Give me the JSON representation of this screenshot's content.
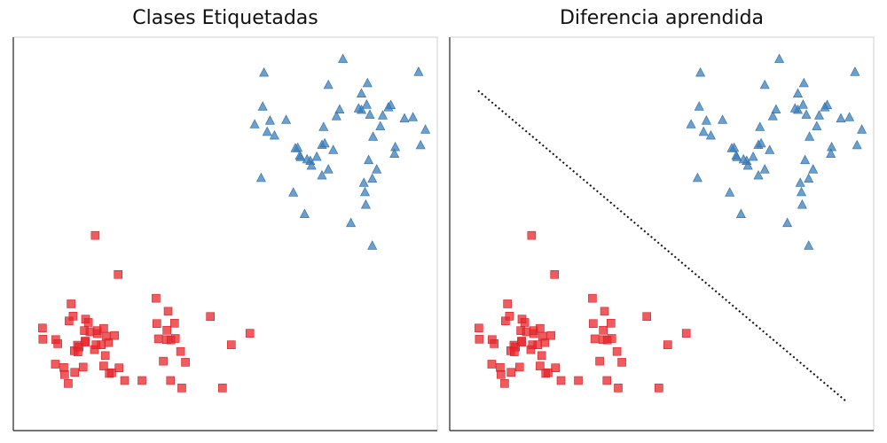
{
  "chart_data": [
    {
      "type": "scatter",
      "title": "Clases Etiquetadas",
      "xlim": [
        0,
        1000
      ],
      "ylim": [
        0,
        1000
      ],
      "grid": false,
      "axis_ticks": false,
      "colors": {
        "class_a": "#e8262b",
        "class_b": "#3a7fbd"
      },
      "series": [
        {
          "marker": "square",
          "points": [
            [
              177,
              496
            ],
            [
              46,
              247
            ],
            [
              234,
              391
            ],
            [
              225,
              227
            ],
            [
              212,
              125
            ],
            [
              78,
              150
            ],
            [
              99,
              141
            ],
            [
              101,
              122
            ],
            [
              112,
              266
            ],
            [
              117,
              312
            ],
            [
              126,
              128
            ],
            [
              122,
              279
            ],
            [
              110,
              98
            ],
            [
              125,
              186
            ],
            [
              133,
              201
            ],
            [
              137,
              196
            ],
            [
              152,
              212
            ],
            [
              147,
              142
            ],
            [
              134,
              183
            ],
            [
              150,
              240
            ],
            [
              153,
              271
            ],
            [
              160,
              262
            ],
            [
              152,
              209
            ],
            [
              164,
              237
            ],
            [
              175,
              189
            ],
            [
              182,
              232
            ],
            [
              198,
              145
            ],
            [
              202,
              173
            ],
            [
              210,
              208
            ],
            [
              204,
              225
            ],
            [
              192,
              202
            ],
            [
              179,
              202
            ],
            [
              182,
              240
            ],
            [
              198,
              246
            ],
            [
              218,
              127
            ],
            [
              236,
              140
            ],
            [
              250,
              106
            ],
            [
              293,
              106
            ],
            [
              334,
              218
            ],
            [
              330,
              259
            ],
            [
              328,
              327
            ],
            [
              354,
              216
            ],
            [
              355,
              241
            ],
            [
              346,
              158
            ],
            [
              358,
              292
            ],
            [
              365,
              215
            ],
            [
              374,
              260
            ],
            [
              376,
              219
            ],
            [
              389,
              184
            ],
            [
              364,
              106
            ],
            [
              392,
              86
            ],
            [
              401,
              155
            ],
            [
              463,
              278
            ],
            [
              515,
              202
            ],
            [
              561,
              233
            ],
            [
              493,
              86
            ],
            [
              79,
              216
            ],
            [
              47,
              217
            ],
            [
              84,
              205
            ]
          ]
        },
        {
          "marker": "triangle",
          "points": [
            [
              596,
              933
            ],
            [
              792,
              970
            ],
            [
              980,
              935
            ],
            [
              756,
              900
            ],
            [
              853,
              905
            ],
            [
              838,
              877
            ],
            [
              776,
              816
            ],
            [
              740,
              739
            ],
            [
              747,
              743
            ],
            [
              744,
              787
            ],
            [
              838,
              833
            ],
            [
              831,
              837
            ],
            [
              784,
              834
            ],
            [
              885,
              789
            ],
            [
              911,
              846
            ],
            [
              905,
              840
            ],
            [
              859,
              820
            ],
            [
              851,
              847
            ],
            [
              891,
              818
            ],
            [
              945,
              810
            ],
            [
              966,
              813
            ],
            [
              997,
              780
            ],
            [
              922,
              733
            ],
            [
              920,
              715
            ],
            [
              985,
              738
            ],
            [
              604,
              774
            ],
            [
              611,
              804
            ],
            [
              622,
              764
            ],
            [
              651,
              806
            ],
            [
              680,
              731
            ],
            [
              674,
              730
            ],
            [
              685,
              710
            ],
            [
              687,
              706
            ],
            [
              711,
              696
            ],
            [
              714,
              683
            ],
            [
              703,
              700
            ],
            [
              740,
              657
            ],
            [
              756,
              673
            ],
            [
              727,
              707
            ],
            [
              768,
              725
            ],
            [
              856,
              698
            ],
            [
              876,
              673
            ],
            [
              865,
              648
            ],
            [
              847,
              612
            ],
            [
              844,
              637
            ],
            [
              867,
              761
            ],
            [
              849,
              578
            ],
            [
              812,
              529
            ],
            [
              865,
              468
            ],
            [
              669,
              611
            ],
            [
              697,
              553
            ],
            [
              589,
              650
            ],
            [
              573,
              794
            ],
            [
              593,
              842
            ]
          ]
        }
      ]
    },
    {
      "type": "scatter",
      "title": "Diferencia aprendida",
      "xlim": [
        0,
        1000
      ],
      "ylim": [
        0,
        1000
      ],
      "grid": false,
      "axis_ticks": false,
      "colors": {
        "class_a": "#e8262b",
        "class_b": "#3a7fbd",
        "boundary": "#111111"
      },
      "series": [
        {
          "marker": "square",
          "points": [
            [
              177,
              496
            ],
            [
              46,
              247
            ],
            [
              234,
              391
            ],
            [
              225,
              227
            ],
            [
              212,
              125
            ],
            [
              78,
              150
            ],
            [
              99,
              141
            ],
            [
              101,
              122
            ],
            [
              112,
              266
            ],
            [
              117,
              312
            ],
            [
              126,
              128
            ],
            [
              122,
              279
            ],
            [
              110,
              98
            ],
            [
              125,
              186
            ],
            [
              133,
              201
            ],
            [
              137,
              196
            ],
            [
              152,
              212
            ],
            [
              147,
              142
            ],
            [
              134,
              183
            ],
            [
              150,
              240
            ],
            [
              153,
              271
            ],
            [
              160,
              262
            ],
            [
              152,
              209
            ],
            [
              164,
              237
            ],
            [
              175,
              189
            ],
            [
              182,
              232
            ],
            [
              198,
              145
            ],
            [
              202,
              173
            ],
            [
              210,
              208
            ],
            [
              204,
              225
            ],
            [
              192,
              202
            ],
            [
              179,
              202
            ],
            [
              182,
              240
            ],
            [
              198,
              246
            ],
            [
              218,
              127
            ],
            [
              236,
              140
            ],
            [
              250,
              106
            ],
            [
              293,
              106
            ],
            [
              334,
              218
            ],
            [
              330,
              259
            ],
            [
              328,
              327
            ],
            [
              354,
              216
            ],
            [
              355,
              241
            ],
            [
              346,
              158
            ],
            [
              358,
              292
            ],
            [
              365,
              215
            ],
            [
              374,
              260
            ],
            [
              376,
              219
            ],
            [
              389,
              184
            ],
            [
              364,
              106
            ],
            [
              392,
              86
            ],
            [
              401,
              155
            ],
            [
              463,
              278
            ],
            [
              515,
              202
            ],
            [
              561,
              233
            ],
            [
              493,
              86
            ],
            [
              79,
              216
            ],
            [
              47,
              217
            ],
            [
              84,
              205
            ]
          ]
        },
        {
          "marker": "triangle",
          "points": [
            [
              596,
              933
            ],
            [
              792,
              970
            ],
            [
              980,
              935
            ],
            [
              756,
              900
            ],
            [
              853,
              905
            ],
            [
              838,
              877
            ],
            [
              776,
              816
            ],
            [
              740,
              739
            ],
            [
              747,
              743
            ],
            [
              744,
              787
            ],
            [
              838,
              833
            ],
            [
              831,
              837
            ],
            [
              784,
              834
            ],
            [
              885,
              789
            ],
            [
              911,
              846
            ],
            [
              905,
              840
            ],
            [
              859,
              820
            ],
            [
              851,
              847
            ],
            [
              891,
              818
            ],
            [
              945,
              810
            ],
            [
              966,
              813
            ],
            [
              997,
              780
            ],
            [
              922,
              733
            ],
            [
              920,
              715
            ],
            [
              985,
              738
            ],
            [
              604,
              774
            ],
            [
              611,
              804
            ],
            [
              622,
              764
            ],
            [
              651,
              806
            ],
            [
              680,
              731
            ],
            [
              674,
              730
            ],
            [
              685,
              710
            ],
            [
              687,
              706
            ],
            [
              711,
              696
            ],
            [
              714,
              683
            ],
            [
              703,
              700
            ],
            [
              740,
              657
            ],
            [
              756,
              673
            ],
            [
              727,
              707
            ],
            [
              768,
              725
            ],
            [
              856,
              698
            ],
            [
              876,
              673
            ],
            [
              865,
              648
            ],
            [
              847,
              612
            ],
            [
              844,
              637
            ],
            [
              867,
              761
            ],
            [
              849,
              578
            ],
            [
              812,
              529
            ],
            [
              865,
              468
            ],
            [
              669,
              611
            ],
            [
              697,
              553
            ],
            [
              589,
              650
            ],
            [
              573,
              794
            ],
            [
              593,
              842
            ]
          ]
        },
        {
          "marker": "dotted-line",
          "points": [
            [
              44,
              885
            ],
            [
              956,
              52
            ]
          ]
        }
      ]
    }
  ]
}
